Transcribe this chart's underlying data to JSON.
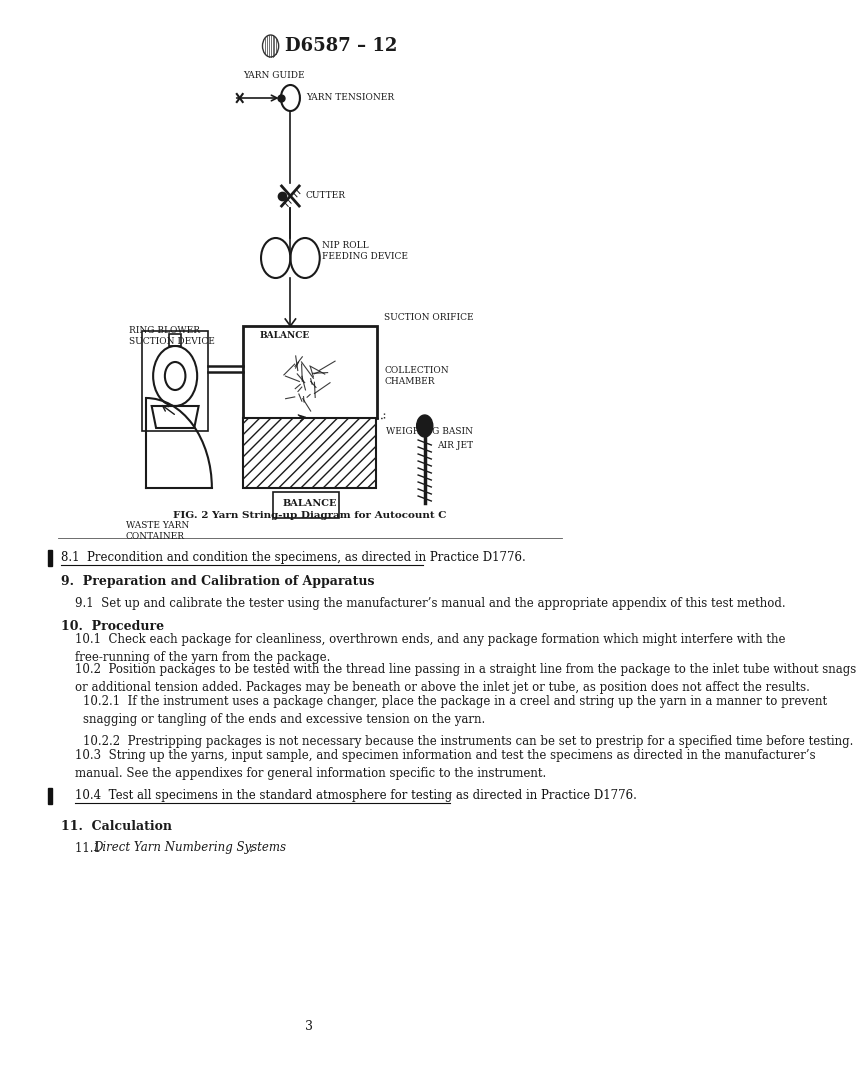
{
  "page_title": "D6587 – 12",
  "fig_caption": "FIG. 2 Yarn String-up Diagram for Autocount C",
  "section_8_1": "8.1  Precondition and condition the specimens, as directed in Practice D1776.",
  "section_9_title": "9.  Preparation and Calibration of Apparatus",
  "section_9_1": "9.1  Set up and calibrate the tester using the manufacturer’s manual and the appropriate appendix of this test method.",
  "section_10_title": "10.  Procedure",
  "section_10_1": "10.1  Check each package for cleanliness, overthrown ends, and any package formation which might interfere with the\nfree-running of the yarn from the package.",
  "section_10_2": "10.2  Position packages to be tested with the thread line passing in a straight line from the package to the inlet tube without snags\nor additional tension added. Packages may be beneath or above the inlet jet or tube, as position does not affect the results.",
  "section_10_2_1": "10.2.1  If the instrument uses a package changer, place the package in a creel and string up the yarn in a manner to prevent\nsnagging or tangling of the ends and excessive tension on the yarn.",
  "section_10_2_2": "10.2.2  Prestripping packages is not necessary because the instruments can be set to prestrip for a specified time before testing.",
  "section_10_3": "10.3  String up the yarns, input sample, and specimen information and test the specimens as directed in the manufacturer’s\nmanual. See the appendixes for general information specific to the instrument.",
  "section_10_4": "10.4  Test all specimens in the standard atmosphere for testing as directed in Practice D1776.",
  "section_11_title": "11.  Calculation",
  "section_11_1_italic": "Direct Yarn Numbering Systems",
  "page_number": "3",
  "bg_color": "#ffffff",
  "text_color": "#1a1a1a"
}
